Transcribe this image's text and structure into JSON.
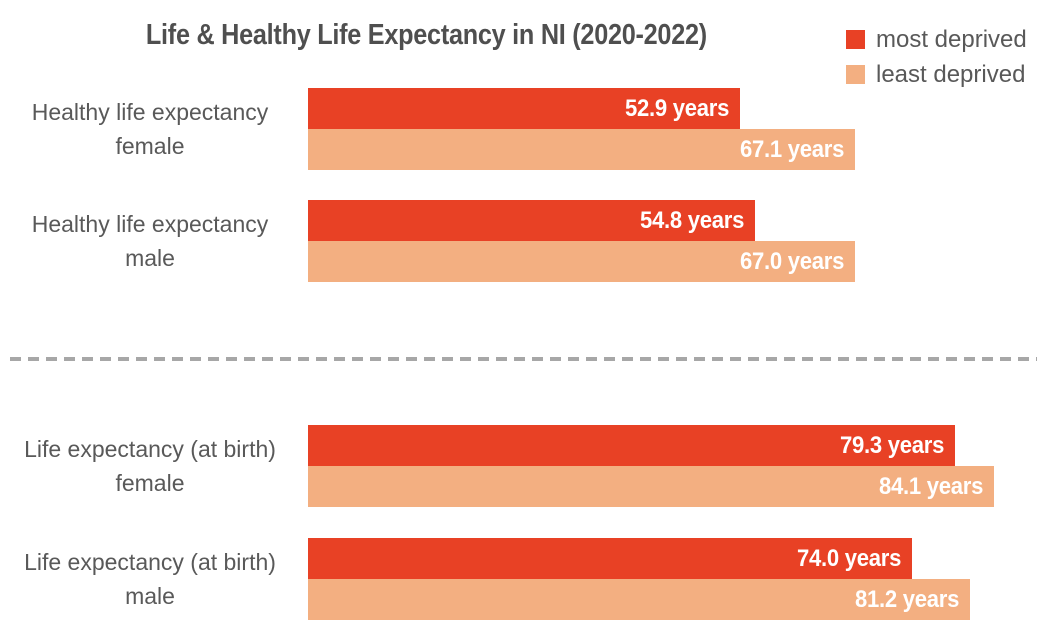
{
  "chart_title": "Life & Healthy Life Expectancy in NI (2020-2022)",
  "legend": [
    {
      "label": "most deprived",
      "color": "#e84125"
    },
    {
      "label": "least deprived",
      "color": "#f3af81"
    }
  ],
  "rows": [
    {
      "label_lines": [
        "Healthy life expectancy",
        "female"
      ],
      "bars": [
        {
          "series": "most deprived",
          "value": 52.9,
          "label": "52.9 years"
        },
        {
          "series": "least deprived",
          "value": 67.1,
          "label": "67.1 years"
        }
      ]
    },
    {
      "label_lines": [
        "Healthy life expectancy",
        "male"
      ],
      "bars": [
        {
          "series": "most deprived",
          "value": 54.8,
          "label": "54.8 years"
        },
        {
          "series": "least deprived",
          "value": 67.0,
          "label": "67.0 years"
        }
      ]
    },
    {
      "label_lines": [
        "Life expectancy (at birth)",
        "female"
      ],
      "bars": [
        {
          "series": "most deprived",
          "value": 79.3,
          "label": "79.3 years"
        },
        {
          "series": "least deprived",
          "value": 84.1,
          "label": "84.1 years"
        }
      ]
    },
    {
      "label_lines": [
        "Life expectancy (at birth)",
        "male"
      ],
      "bars": [
        {
          "series": "most deprived",
          "value": 74.0,
          "label": "74.0 years"
        },
        {
          "series": "least deprived",
          "value": 81.2,
          "label": "81.2 years"
        }
      ]
    }
  ],
  "chart_data": {
    "type": "bar",
    "orientation": "horizontal",
    "title": "Life & Healthy Life Expectancy in NI (2020-2022)",
    "categories": [
      "Healthy life expectancy female",
      "Healthy life expectancy male",
      "Life expectancy (at birth) female",
      "Life expectancy (at birth) male"
    ],
    "series": [
      {
        "name": "most deprived",
        "color": "#e84125",
        "values": [
          52.9,
          54.8,
          79.3,
          74.0
        ]
      },
      {
        "name": "least deprived",
        "color": "#f3af81",
        "values": [
          67.1,
          67.0,
          84.1,
          81.2
        ]
      }
    ],
    "value_suffix": " years",
    "xlim": [
      0,
      84.1
    ],
    "grid": false,
    "axes_visible": false,
    "legend_position": "top-right",
    "section_divider": "dashed horizontal line between healthy life expectancy and life expectancy groups"
  },
  "colors": {
    "title_text": "#4f4f4f",
    "label_text": "#595959",
    "value_text": "#ffffff",
    "divider": "#a7a7a7",
    "background": "#ffffff"
  }
}
